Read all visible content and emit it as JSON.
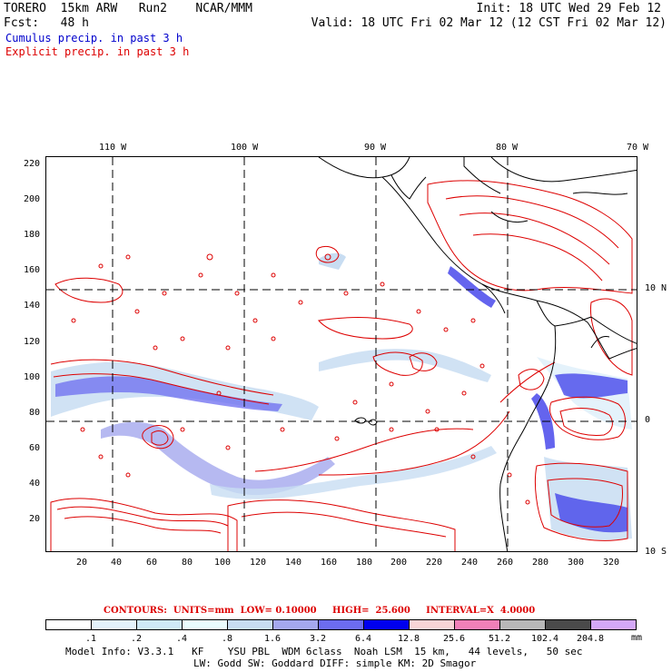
{
  "header": {
    "line1_left": "TORERO  15km ARW   Run2    NCAR/MMM",
    "line1_right": "Init: 18 UTC Wed 29 Feb 12",
    "line2_left": "Fcst:   48 h",
    "line2_right": "Valid: 18 UTC Fri 02 Mar 12 (12 CST Fri 02 Mar 12)",
    "legend_cumulus": "Cumulus precip. in past 3 h",
    "legend_explicit": "Explicit precip. in past 3 h"
  },
  "map": {
    "lon_labels": [
      "110 W",
      "100 W",
      "90 W",
      "80 W",
      "70 W"
    ],
    "lat_labels": [
      "10 N",
      "0",
      "10 S"
    ],
    "y_axis_labels": [
      "220",
      "200",
      "180",
      "160",
      "140",
      "120",
      "100",
      "80",
      "60",
      "40",
      "20"
    ],
    "x_axis_labels": [
      "20",
      "40",
      "60",
      "80",
      "100",
      "120",
      "140",
      "160",
      "180",
      "200",
      "220",
      "240",
      "260",
      "280",
      "300",
      "320"
    ]
  },
  "contour_info": {
    "text": "CONTOURS:  UNITS=mm  LOW= 0.10000     HIGH=  25.600     INTERVAL=X  4.0000"
  },
  "colorbar": {
    "labels": [
      ".1",
      ".2",
      ".4",
      ".8",
      "1.6",
      "3.2",
      "6.4",
      "12.8",
      "25.6",
      "51.2",
      "102.4",
      "204.8"
    ],
    "unit": "mm",
    "colors": [
      "#ffffff",
      "#e4f2fb",
      "#cfe9f7",
      "#eafcfd",
      "#c8ddf2",
      "#a4a8ee",
      "#6c6cf0",
      "#0000ee",
      "#f8d4d6",
      "#f080b8",
      "#b8b8b8",
      "#4a4a4a",
      "#d4a8f8"
    ]
  },
  "footer": {
    "line1": "Model Info: V3.3.1   KF    YSU PBL  WDM 6class  Noah LSM  15 km,   44 levels,   50 sec",
    "line2": "LW: Godd SW: Goddard DIFF: simple KM: 2D Smagor"
  }
}
